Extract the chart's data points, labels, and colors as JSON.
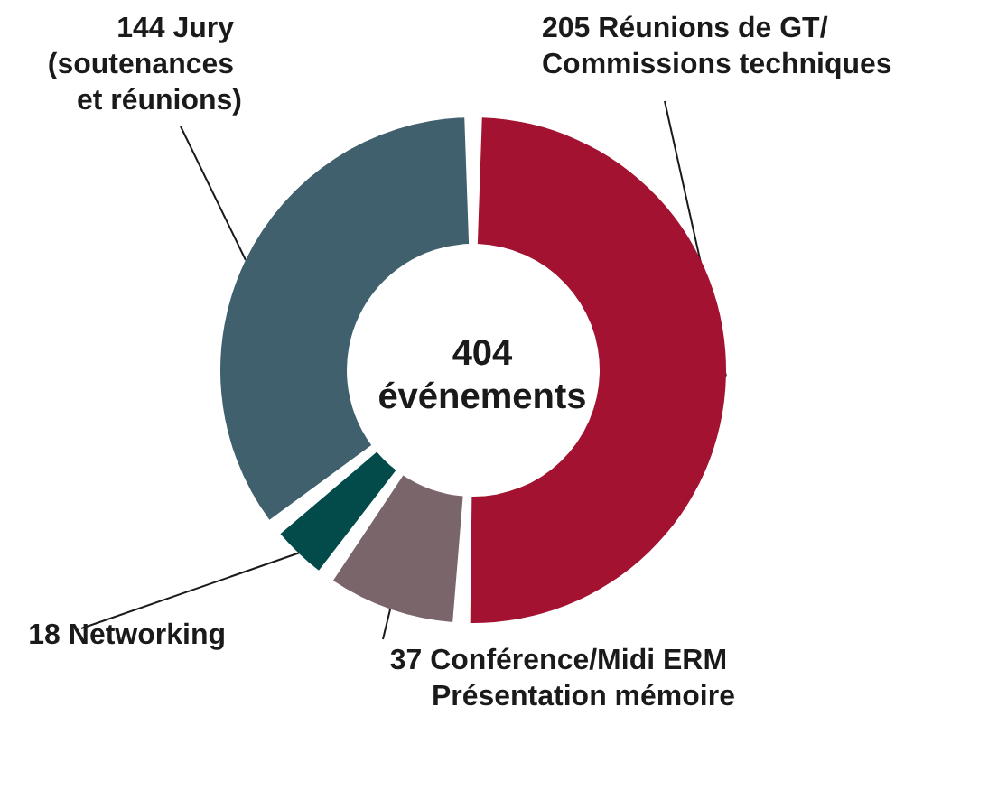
{
  "chart_data": {
    "type": "donut",
    "title": "404\névénements",
    "categories": [
      "Réunions de GT/ Commissions techniques",
      "Conférence/Midi ERM Présentation mémoire",
      "Networking",
      "Jury (soutenances et réunions)"
    ],
    "values": [
      205,
      37,
      18,
      144
    ],
    "value_labels": [
      "205",
      "37",
      "18",
      "144"
    ],
    "colors": [
      "#a31230",
      "#7a656b",
      "#034a4a",
      "#41606e"
    ]
  }
}
